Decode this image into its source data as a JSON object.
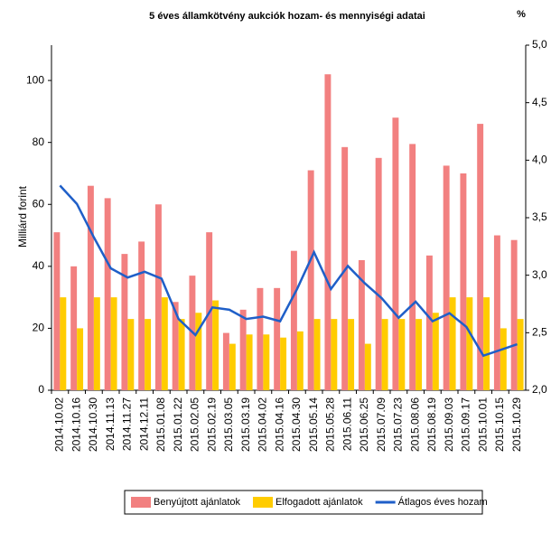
{
  "chart_data": {
    "type": "bar-line",
    "title": "5 éves államkötvény aukciók hozam- és mennyiségi adatai",
    "y_label": "Milliárd forint",
    "y2_label": "%",
    "categories": [
      "2014.10.02",
      "2014.10.16",
      "2014.10.30",
      "2014.11.13",
      "2014.11.27",
      "2014.12.11",
      "2015.01.08",
      "2015.01.22",
      "2015.02.05",
      "2015.02.19",
      "2015.03.05",
      "2015.03.19",
      "2015.04.02",
      "2015.04.16",
      "2015.04.30",
      "2015.05.14",
      "2015.05.28",
      "2015.06.11",
      "2015.06.25",
      "2015.07.09",
      "2015.07.23",
      "2015.08.06",
      "2015.08.19",
      "2015.09.03",
      "2015.09.17",
      "2015.10.01",
      "2015.10.15",
      "2015.10.29"
    ],
    "series": [
      {
        "name": "Benyújtott ajánlatok",
        "color": "#f28080",
        "type": "bar",
        "values": [
          51,
          40,
          66,
          62,
          44,
          48,
          60,
          28.5,
          37,
          51,
          18.5,
          26,
          33,
          33,
          45,
          71,
          102,
          78.5,
          42,
          75,
          88,
          79.5,
          43.5,
          72.5,
          70,
          86,
          50,
          48.5
        ]
      },
      {
        "name": "Elfogadott ajánlatok",
        "color": "#ffcc00",
        "type": "bar",
        "values": [
          30,
          20,
          30,
          30,
          23,
          23,
          30,
          23,
          25,
          29,
          15,
          18,
          18,
          17,
          19,
          23,
          23,
          23,
          15,
          23,
          23,
          23,
          25,
          30,
          30,
          30,
          20,
          23
        ]
      },
      {
        "name": "Átlagos éves hozam",
        "color": "#1f5fc8",
        "type": "line",
        "axis": "y2",
        "values": [
          3.78,
          3.62,
          3.33,
          3.06,
          2.98,
          3.03,
          2.97,
          2.62,
          2.48,
          2.72,
          2.7,
          2.62,
          2.64,
          2.6,
          2.88,
          3.2,
          2.88,
          3.08,
          2.93,
          2.8,
          2.63,
          2.77,
          2.6,
          2.67,
          2.55,
          2.3,
          2.35,
          2.4
        ]
      }
    ],
    "ylim": [
      0,
      111.4
    ],
    "yticks": [
      0,
      20,
      40,
      60,
      80,
      100
    ],
    "y2lim": [
      2,
      5
    ],
    "y2ticks": [
      {
        "value": 2,
        "label": "2,0"
      },
      {
        "value": 2.5,
        "label": "2,5"
      },
      {
        "value": 3,
        "label": "3,0"
      },
      {
        "value": 3.5,
        "label": "3,5"
      },
      {
        "value": 4,
        "label": "4,0"
      },
      {
        "value": 4.5,
        "label": "4,5"
      },
      {
        "value": 5,
        "label": "5,0"
      }
    ],
    "legend": "bottom"
  }
}
